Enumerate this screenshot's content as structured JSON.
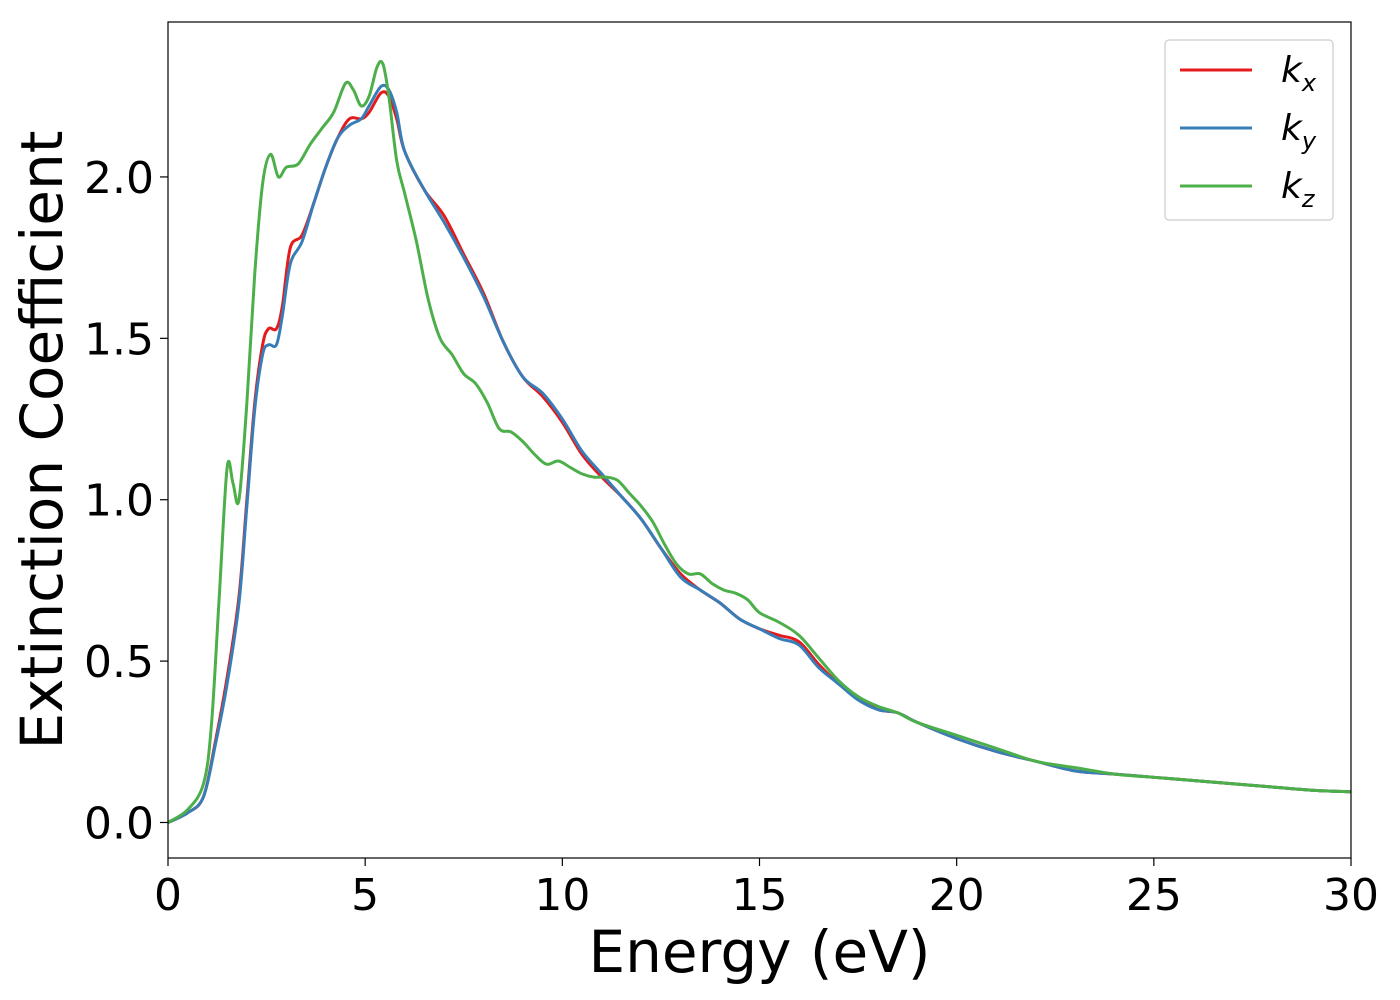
{
  "chart_data": {
    "type": "line",
    "xlabel": "Energy (eV)",
    "ylabel": "Extinction Coefficient",
    "xlim": [
      0,
      30
    ],
    "ylim": [
      -0.11,
      2.48
    ],
    "xticks": [
      0,
      5,
      10,
      15,
      20,
      25,
      30
    ],
    "xtick_labels": [
      "0",
      "5",
      "10",
      "15",
      "20",
      "25",
      "30"
    ],
    "yticks": [
      0.0,
      0.5,
      1.0,
      1.5,
      2.0
    ],
    "ytick_labels": [
      "0.0",
      "0.5",
      "1.0",
      "1.5",
      "2.0"
    ],
    "grid": false,
    "legend_position": "top-right",
    "series": [
      {
        "name": "k",
        "subscript": "x",
        "color": "#e41a1c",
        "points": [
          [
            0,
            0
          ],
          [
            0.5,
            0.03
          ],
          [
            0.9,
            0.08
          ],
          [
            1.2,
            0.25
          ],
          [
            1.5,
            0.45
          ],
          [
            1.8,
            0.7
          ],
          [
            2.0,
            1.0
          ],
          [
            2.2,
            1.3
          ],
          [
            2.4,
            1.48
          ],
          [
            2.55,
            1.53
          ],
          [
            2.75,
            1.53
          ],
          [
            2.9,
            1.6
          ],
          [
            3.1,
            1.78
          ],
          [
            3.4,
            1.82
          ],
          [
            3.7,
            1.92
          ],
          [
            4.0,
            2.03
          ],
          [
            4.3,
            2.12
          ],
          [
            4.6,
            2.18
          ],
          [
            4.9,
            2.18
          ],
          [
            5.1,
            2.2
          ],
          [
            5.4,
            2.26
          ],
          [
            5.6,
            2.25
          ],
          [
            5.8,
            2.18
          ],
          [
            6.0,
            2.08
          ],
          [
            6.5,
            1.96
          ],
          [
            7.0,
            1.88
          ],
          [
            7.5,
            1.76
          ],
          [
            8.0,
            1.64
          ],
          [
            8.5,
            1.49
          ],
          [
            9.0,
            1.38
          ],
          [
            9.5,
            1.32
          ],
          [
            10.0,
            1.24
          ],
          [
            10.5,
            1.14
          ],
          [
            11.0,
            1.07
          ],
          [
            11.5,
            1.01
          ],
          [
            12.0,
            0.94
          ],
          [
            12.5,
            0.85
          ],
          [
            13.0,
            0.77
          ],
          [
            13.5,
            0.72
          ],
          [
            14.0,
            0.68
          ],
          [
            14.5,
            0.63
          ],
          [
            15.0,
            0.6
          ],
          [
            15.5,
            0.58
          ],
          [
            16.0,
            0.56
          ],
          [
            16.5,
            0.49
          ],
          [
            17.0,
            0.43
          ],
          [
            17.5,
            0.39
          ],
          [
            18.0,
            0.35
          ],
          [
            18.5,
            0.34
          ],
          [
            19.0,
            0.31
          ],
          [
            20.0,
            0.26
          ],
          [
            21.0,
            0.22
          ],
          [
            22.0,
            0.19
          ],
          [
            23.0,
            0.16
          ],
          [
            24.0,
            0.15
          ],
          [
            25.0,
            0.14
          ],
          [
            26.0,
            0.13
          ],
          [
            27.0,
            0.12
          ],
          [
            28.0,
            0.11
          ],
          [
            29.0,
            0.1
          ],
          [
            30.0,
            0.095
          ]
        ]
      },
      {
        "name": "k",
        "subscript": "y",
        "color": "#377eb8",
        "points": [
          [
            0,
            0
          ],
          [
            0.5,
            0.03
          ],
          [
            0.9,
            0.08
          ],
          [
            1.2,
            0.24
          ],
          [
            1.5,
            0.43
          ],
          [
            1.8,
            0.68
          ],
          [
            2.0,
            0.98
          ],
          [
            2.2,
            1.28
          ],
          [
            2.4,
            1.45
          ],
          [
            2.55,
            1.48
          ],
          [
            2.75,
            1.48
          ],
          [
            2.9,
            1.57
          ],
          [
            3.1,
            1.73
          ],
          [
            3.4,
            1.8
          ],
          [
            3.7,
            1.92
          ],
          [
            4.0,
            2.03
          ],
          [
            4.3,
            2.12
          ],
          [
            4.6,
            2.16
          ],
          [
            4.9,
            2.18
          ],
          [
            5.1,
            2.22
          ],
          [
            5.4,
            2.28
          ],
          [
            5.6,
            2.27
          ],
          [
            5.8,
            2.2
          ],
          [
            6.0,
            2.08
          ],
          [
            6.5,
            1.96
          ],
          [
            7.0,
            1.86
          ],
          [
            7.5,
            1.75
          ],
          [
            8.0,
            1.63
          ],
          [
            8.5,
            1.49
          ],
          [
            9.0,
            1.38
          ],
          [
            9.5,
            1.33
          ],
          [
            10.0,
            1.25
          ],
          [
            10.5,
            1.15
          ],
          [
            11.0,
            1.08
          ],
          [
            11.5,
            1.01
          ],
          [
            12.0,
            0.94
          ],
          [
            12.5,
            0.85
          ],
          [
            13.0,
            0.76
          ],
          [
            13.5,
            0.72
          ],
          [
            14.0,
            0.68
          ],
          [
            14.5,
            0.63
          ],
          [
            15.0,
            0.6
          ],
          [
            15.5,
            0.57
          ],
          [
            16.0,
            0.55
          ],
          [
            16.5,
            0.48
          ],
          [
            17.0,
            0.43
          ],
          [
            17.5,
            0.38
          ],
          [
            18.0,
            0.35
          ],
          [
            18.5,
            0.34
          ],
          [
            19.0,
            0.31
          ],
          [
            20.0,
            0.26
          ],
          [
            21.0,
            0.22
          ],
          [
            22.0,
            0.19
          ],
          [
            23.0,
            0.16
          ],
          [
            24.0,
            0.15
          ],
          [
            25.0,
            0.14
          ],
          [
            26.0,
            0.13
          ],
          [
            27.0,
            0.12
          ],
          [
            28.0,
            0.11
          ],
          [
            29.0,
            0.1
          ],
          [
            30.0,
            0.095
          ]
        ]
      },
      {
        "name": "k",
        "subscript": "z",
        "color": "#4daf4a",
        "points": [
          [
            0,
            0
          ],
          [
            0.5,
            0.04
          ],
          [
            0.9,
            0.12
          ],
          [
            1.1,
            0.3
          ],
          [
            1.3,
            0.7
          ],
          [
            1.5,
            1.1
          ],
          [
            1.65,
            1.05
          ],
          [
            1.8,
            1.0
          ],
          [
            2.0,
            1.3
          ],
          [
            2.2,
            1.7
          ],
          [
            2.4,
            1.98
          ],
          [
            2.6,
            2.07
          ],
          [
            2.8,
            2.0
          ],
          [
            3.0,
            2.03
          ],
          [
            3.3,
            2.04
          ],
          [
            3.6,
            2.1
          ],
          [
            3.9,
            2.15
          ],
          [
            4.2,
            2.2
          ],
          [
            4.5,
            2.29
          ],
          [
            4.7,
            2.27
          ],
          [
            4.9,
            2.22
          ],
          [
            5.1,
            2.25
          ],
          [
            5.3,
            2.34
          ],
          [
            5.45,
            2.35
          ],
          [
            5.6,
            2.25
          ],
          [
            5.8,
            2.05
          ],
          [
            6.0,
            1.95
          ],
          [
            6.3,
            1.8
          ],
          [
            6.6,
            1.62
          ],
          [
            6.9,
            1.5
          ],
          [
            7.2,
            1.45
          ],
          [
            7.5,
            1.39
          ],
          [
            7.8,
            1.36
          ],
          [
            8.1,
            1.3
          ],
          [
            8.4,
            1.22
          ],
          [
            8.7,
            1.21
          ],
          [
            9.0,
            1.18
          ],
          [
            9.3,
            1.14
          ],
          [
            9.6,
            1.11
          ],
          [
            9.9,
            1.12
          ],
          [
            10.2,
            1.1
          ],
          [
            10.5,
            1.08
          ],
          [
            10.8,
            1.07
          ],
          [
            11.1,
            1.07
          ],
          [
            11.4,
            1.06
          ],
          [
            11.7,
            1.02
          ],
          [
            12.0,
            0.98
          ],
          [
            12.3,
            0.93
          ],
          [
            12.6,
            0.86
          ],
          [
            12.9,
            0.8
          ],
          [
            13.2,
            0.77
          ],
          [
            13.5,
            0.77
          ],
          [
            13.8,
            0.74
          ],
          [
            14.1,
            0.72
          ],
          [
            14.4,
            0.71
          ],
          [
            14.7,
            0.69
          ],
          [
            15.0,
            0.65
          ],
          [
            15.5,
            0.62
          ],
          [
            16.0,
            0.58
          ],
          [
            16.5,
            0.51
          ],
          [
            17.0,
            0.44
          ],
          [
            17.5,
            0.39
          ],
          [
            18.0,
            0.36
          ],
          [
            18.5,
            0.34
          ],
          [
            19.0,
            0.31
          ],
          [
            20.0,
            0.27
          ],
          [
            21.0,
            0.23
          ],
          [
            22.0,
            0.19
          ],
          [
            23.0,
            0.17
          ],
          [
            24.0,
            0.15
          ],
          [
            25.0,
            0.14
          ],
          [
            26.0,
            0.13
          ],
          [
            27.0,
            0.12
          ],
          [
            28.0,
            0.11
          ],
          [
            29.0,
            0.1
          ],
          [
            30.0,
            0.095
          ]
        ]
      }
    ]
  }
}
